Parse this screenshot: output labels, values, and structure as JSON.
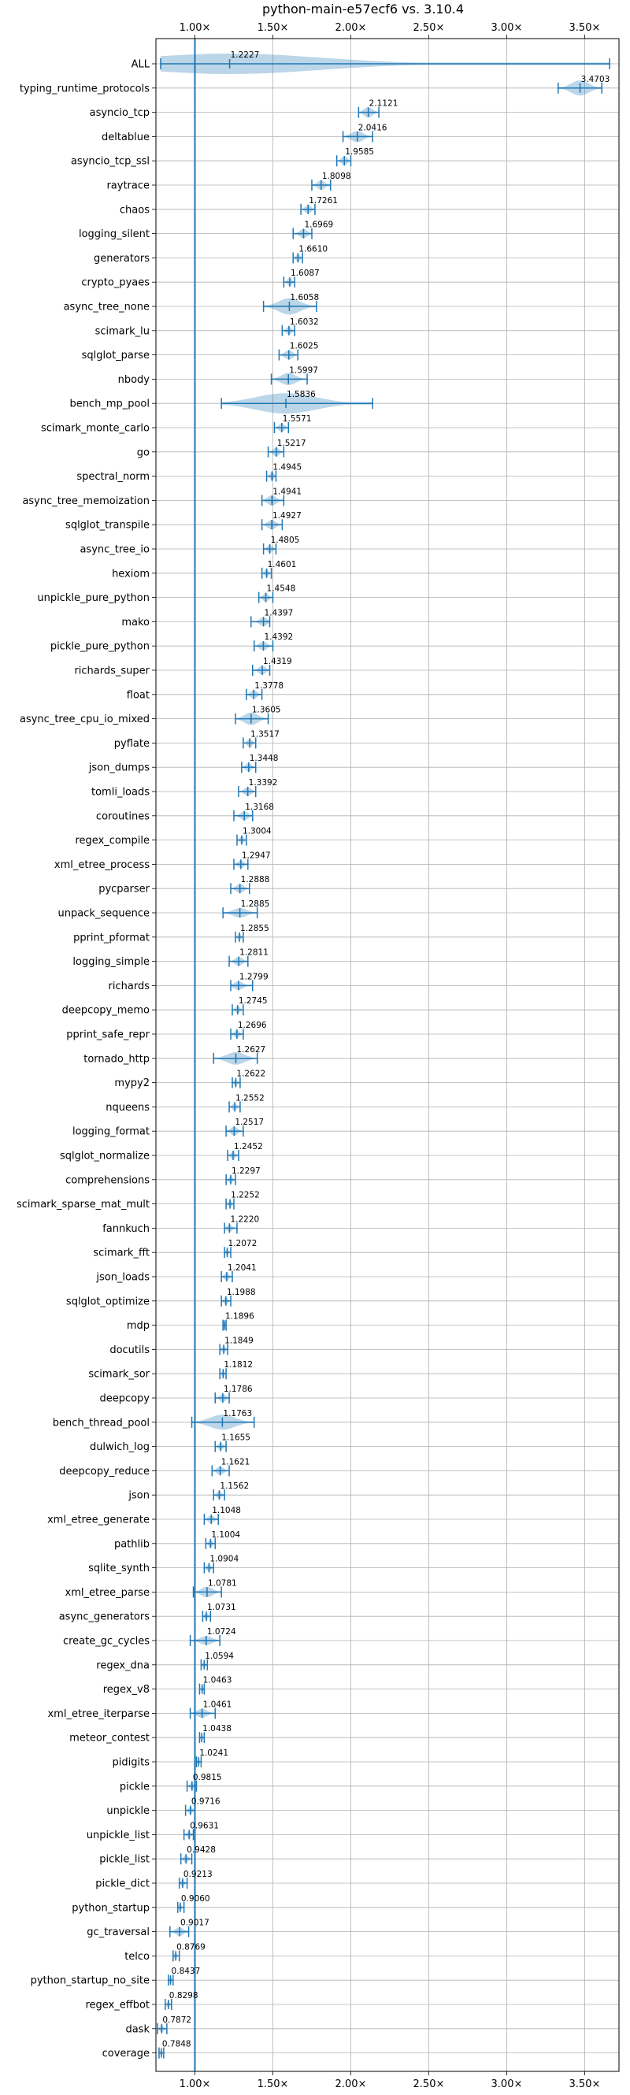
{
  "chart_data": {
    "type": "violin",
    "title": "python-main-e57ecf6 vs. 3.10.4",
    "x_ticks": [
      1.0,
      1.5,
      2.0,
      2.5,
      3.0,
      3.5
    ],
    "x_tick_labels": [
      "1.00×",
      "1.50×",
      "2.00×",
      "2.50×",
      "3.00×",
      "3.50×"
    ],
    "xlim": [
      0.75,
      3.72
    ],
    "reference_line": 1.0,
    "benchmarks": [
      {
        "name": "ALL",
        "value": 1.2227,
        "label": "1.2227",
        "min": 0.78,
        "max": 3.66,
        "spread": 0.55
      },
      {
        "name": "typing_runtime_protocols",
        "value": 3.4703,
        "label": "3.4703",
        "min": 3.33,
        "max": 3.61,
        "spread": 0.14
      },
      {
        "name": "asyncio_tcp",
        "value": 2.1121,
        "label": "2.1121",
        "min": 2.05,
        "max": 2.18,
        "spread": 0.07
      },
      {
        "name": "deltablue",
        "value": 2.0416,
        "label": "2.0416",
        "min": 1.95,
        "max": 2.14,
        "spread": 0.08
      },
      {
        "name": "asyncio_tcp_ssl",
        "value": 1.9585,
        "label": "1.9585",
        "min": 1.91,
        "max": 2.0,
        "spread": 0.05
      },
      {
        "name": "raytrace",
        "value": 1.8098,
        "label": "1.8098",
        "min": 1.75,
        "max": 1.87,
        "spread": 0.05
      },
      {
        "name": "chaos",
        "value": 1.7261,
        "label": "1.7261",
        "min": 1.68,
        "max": 1.77,
        "spread": 0.04
      },
      {
        "name": "logging_silent",
        "value": 1.6969,
        "label": "1.6969",
        "min": 1.63,
        "max": 1.75,
        "spread": 0.05
      },
      {
        "name": "generators",
        "value": 1.661,
        "label": "1.6610",
        "min": 1.63,
        "max": 1.69,
        "spread": 0.03
      },
      {
        "name": "crypto_pyaes",
        "value": 1.6087,
        "label": "1.6087",
        "min": 1.57,
        "max": 1.64,
        "spread": 0.03
      },
      {
        "name": "async_tree_none",
        "value": 1.6058,
        "label": "1.6058",
        "min": 1.44,
        "max": 1.78,
        "spread": 0.16
      },
      {
        "name": "scimark_lu",
        "value": 1.6032,
        "label": "1.6032",
        "min": 1.56,
        "max": 1.64,
        "spread": 0.03
      },
      {
        "name": "sqlglot_parse",
        "value": 1.6025,
        "label": "1.6025",
        "min": 1.54,
        "max": 1.66,
        "spread": 0.05
      },
      {
        "name": "nbody",
        "value": 1.5997,
        "label": "1.5997",
        "min": 1.49,
        "max": 1.72,
        "spread": 0.09
      },
      {
        "name": "bench_mp_pool",
        "value": 1.5836,
        "label": "1.5836",
        "min": 1.17,
        "max": 2.14,
        "spread": 0.38
      },
      {
        "name": "scimark_monte_carlo",
        "value": 1.5571,
        "label": "1.5571",
        "min": 1.51,
        "max": 1.6,
        "spread": 0.04
      },
      {
        "name": "go",
        "value": 1.5217,
        "label": "1.5217",
        "min": 1.47,
        "max": 1.57,
        "spread": 0.04
      },
      {
        "name": "spectral_norm",
        "value": 1.4945,
        "label": "1.4945",
        "min": 1.46,
        "max": 1.52,
        "spread": 0.03
      },
      {
        "name": "async_tree_memoization",
        "value": 1.4941,
        "label": "1.4941",
        "min": 1.43,
        "max": 1.57,
        "spread": 0.06
      },
      {
        "name": "sqlglot_transpile",
        "value": 1.4927,
        "label": "1.4927",
        "min": 1.43,
        "max": 1.56,
        "spread": 0.05
      },
      {
        "name": "async_tree_io",
        "value": 1.4805,
        "label": "1.4805",
        "min": 1.44,
        "max": 1.52,
        "spread": 0.03
      },
      {
        "name": "hexiom",
        "value": 1.4601,
        "label": "1.4601",
        "min": 1.43,
        "max": 1.49,
        "spread": 0.02
      },
      {
        "name": "unpickle_pure_python",
        "value": 1.4548,
        "label": "1.4548",
        "min": 1.41,
        "max": 1.5,
        "spread": 0.04
      },
      {
        "name": "mako",
        "value": 1.4397,
        "label": "1.4397",
        "min": 1.36,
        "max": 1.48,
        "spread": 0.04
      },
      {
        "name": "pickle_pure_python",
        "value": 1.4392,
        "label": "1.4392",
        "min": 1.38,
        "max": 1.5,
        "spread": 0.04
      },
      {
        "name": "richards_super",
        "value": 1.4319,
        "label": "1.4319",
        "min": 1.37,
        "max": 1.48,
        "spread": 0.04
      },
      {
        "name": "float",
        "value": 1.3778,
        "label": "1.3778",
        "min": 1.33,
        "max": 1.43,
        "spread": 0.04
      },
      {
        "name": "async_tree_cpu_io_mixed",
        "value": 1.3605,
        "label": "1.3605",
        "min": 1.26,
        "max": 1.47,
        "spread": 0.1
      },
      {
        "name": "pyflate",
        "value": 1.3517,
        "label": "1.3517",
        "min": 1.31,
        "max": 1.39,
        "spread": 0.03
      },
      {
        "name": "json_dumps",
        "value": 1.3448,
        "label": "1.3448",
        "min": 1.3,
        "max": 1.39,
        "spread": 0.04
      },
      {
        "name": "tomli_loads",
        "value": 1.3392,
        "label": "1.3392",
        "min": 1.28,
        "max": 1.39,
        "spread": 0.04
      },
      {
        "name": "coroutines",
        "value": 1.3168,
        "label": "1.3168",
        "min": 1.25,
        "max": 1.37,
        "spread": 0.04
      },
      {
        "name": "regex_compile",
        "value": 1.3004,
        "label": "1.3004",
        "min": 1.27,
        "max": 1.33,
        "spread": 0.02
      },
      {
        "name": "xml_etree_process",
        "value": 1.2947,
        "label": "1.2947",
        "min": 1.25,
        "max": 1.34,
        "spread": 0.03
      },
      {
        "name": "pycparser",
        "value": 1.2888,
        "label": "1.2888",
        "min": 1.23,
        "max": 1.35,
        "spread": 0.04
      },
      {
        "name": "unpack_sequence",
        "value": 1.2885,
        "label": "1.2885",
        "min": 1.18,
        "max": 1.4,
        "spread": 0.05
      },
      {
        "name": "pprint_pformat",
        "value": 1.2855,
        "label": "1.2855",
        "min": 1.26,
        "max": 1.31,
        "spread": 0.02
      },
      {
        "name": "logging_simple",
        "value": 1.2811,
        "label": "1.2811",
        "min": 1.22,
        "max": 1.34,
        "spread": 0.04
      },
      {
        "name": "richards",
        "value": 1.2799,
        "label": "1.2799",
        "min": 1.23,
        "max": 1.37,
        "spread": 0.04
      },
      {
        "name": "deepcopy_memo",
        "value": 1.2745,
        "label": "1.2745",
        "min": 1.24,
        "max": 1.31,
        "spread": 0.02
      },
      {
        "name": "pprint_safe_repr",
        "value": 1.2696,
        "label": "1.2696",
        "min": 1.23,
        "max": 1.31,
        "spread": 0.03
      },
      {
        "name": "tornado_http",
        "value": 1.2627,
        "label": "1.2627",
        "min": 1.12,
        "max": 1.4,
        "spread": 0.1
      },
      {
        "name": "mypy2",
        "value": 1.2622,
        "label": "1.2622",
        "min": 1.24,
        "max": 1.29,
        "spread": 0.02
      },
      {
        "name": "nqueens",
        "value": 1.2552,
        "label": "1.2552",
        "min": 1.22,
        "max": 1.29,
        "spread": 0.02
      },
      {
        "name": "logging_format",
        "value": 1.2517,
        "label": "1.2517",
        "min": 1.2,
        "max": 1.31,
        "spread": 0.04
      },
      {
        "name": "sqlglot_normalize",
        "value": 1.2452,
        "label": "1.2452",
        "min": 1.21,
        "max": 1.28,
        "spread": 0.02
      },
      {
        "name": "comprehensions",
        "value": 1.2297,
        "label": "1.2297",
        "min": 1.2,
        "max": 1.26,
        "spread": 0.02
      },
      {
        "name": "scimark_sparse_mat_mult",
        "value": 1.2252,
        "label": "1.2252",
        "min": 1.2,
        "max": 1.25,
        "spread": 0.02
      },
      {
        "name": "fannkuch",
        "value": 1.222,
        "label": "1.2220",
        "min": 1.19,
        "max": 1.27,
        "spread": 0.02
      },
      {
        "name": "scimark_fft",
        "value": 1.2072,
        "label": "1.2072",
        "min": 1.19,
        "max": 1.23,
        "spread": 0.01
      },
      {
        "name": "json_loads",
        "value": 1.2041,
        "label": "1.2041",
        "min": 1.17,
        "max": 1.24,
        "spread": 0.03
      },
      {
        "name": "sqlglot_optimize",
        "value": 1.1988,
        "label": "1.1988",
        "min": 1.17,
        "max": 1.23,
        "spread": 0.02
      },
      {
        "name": "mdp",
        "value": 1.1896,
        "label": "1.1896",
        "min": 1.18,
        "max": 1.2,
        "spread": 0.01
      },
      {
        "name": "docutils",
        "value": 1.1849,
        "label": "1.1849",
        "min": 1.16,
        "max": 1.21,
        "spread": 0.02
      },
      {
        "name": "scimark_sor",
        "value": 1.1812,
        "label": "1.1812",
        "min": 1.16,
        "max": 1.2,
        "spread": 0.01
      },
      {
        "name": "deepcopy",
        "value": 1.1786,
        "label": "1.1786",
        "min": 1.13,
        "max": 1.22,
        "spread": 0.03
      },
      {
        "name": "bench_thread_pool",
        "value": 1.1763,
        "label": "1.1763",
        "min": 0.98,
        "max": 1.38,
        "spread": 0.14
      },
      {
        "name": "dulwich_log",
        "value": 1.1655,
        "label": "1.1655",
        "min": 1.13,
        "max": 1.2,
        "spread": 0.02
      },
      {
        "name": "deepcopy_reduce",
        "value": 1.1621,
        "label": "1.1621",
        "min": 1.11,
        "max": 1.22,
        "spread": 0.03
      },
      {
        "name": "json",
        "value": 1.1562,
        "label": "1.1562",
        "min": 1.12,
        "max": 1.19,
        "spread": 0.02
      },
      {
        "name": "xml_etree_generate",
        "value": 1.1048,
        "label": "1.1048",
        "min": 1.06,
        "max": 1.15,
        "spread": 0.03
      },
      {
        "name": "pathlib",
        "value": 1.1004,
        "label": "1.1004",
        "min": 1.07,
        "max": 1.13,
        "spread": 0.02
      },
      {
        "name": "sqlite_synth",
        "value": 1.0904,
        "label": "1.0904",
        "min": 1.06,
        "max": 1.12,
        "spread": 0.02
      },
      {
        "name": "xml_etree_parse",
        "value": 1.0781,
        "label": "1.0781",
        "min": 0.99,
        "max": 1.17,
        "spread": 0.07
      },
      {
        "name": "async_generators",
        "value": 1.0731,
        "label": "1.0731",
        "min": 1.05,
        "max": 1.1,
        "spread": 0.02
      },
      {
        "name": "create_gc_cycles",
        "value": 1.0724,
        "label": "1.0724",
        "min": 0.97,
        "max": 1.16,
        "spread": 0.04
      },
      {
        "name": "regex_dna",
        "value": 1.0594,
        "label": "1.0594",
        "min": 1.04,
        "max": 1.08,
        "spread": 0.01
      },
      {
        "name": "regex_v8",
        "value": 1.0463,
        "label": "1.0463",
        "min": 1.03,
        "max": 1.06,
        "spread": 0.01
      },
      {
        "name": "xml_etree_iterparse",
        "value": 1.0461,
        "label": "1.0461",
        "min": 0.97,
        "max": 1.13,
        "spread": 0.04
      },
      {
        "name": "meteor_contest",
        "value": 1.0438,
        "label": "1.0438",
        "min": 1.03,
        "max": 1.06,
        "spread": 0.01
      },
      {
        "name": "pidigits",
        "value": 1.0241,
        "label": "1.0241",
        "min": 1.01,
        "max": 1.04,
        "spread": 0.01
      },
      {
        "name": "pickle",
        "value": 0.9815,
        "label": "0.9815",
        "min": 0.95,
        "max": 1.01,
        "spread": 0.02
      },
      {
        "name": "unpickle",
        "value": 0.9716,
        "label": "0.9716",
        "min": 0.94,
        "max": 1.0,
        "spread": 0.02
      },
      {
        "name": "unpickle_list",
        "value": 0.9631,
        "label": "0.9631",
        "min": 0.93,
        "max": 0.99,
        "spread": 0.02
      },
      {
        "name": "pickle_list",
        "value": 0.9428,
        "label": "0.9428",
        "min": 0.91,
        "max": 0.98,
        "spread": 0.02
      },
      {
        "name": "pickle_dict",
        "value": 0.9213,
        "label": "0.9213",
        "min": 0.9,
        "max": 0.95,
        "spread": 0.02
      },
      {
        "name": "python_startup",
        "value": 0.906,
        "label": "0.9060",
        "min": 0.89,
        "max": 0.93,
        "spread": 0.02
      },
      {
        "name": "gc_traversal",
        "value": 0.9017,
        "label": "0.9017",
        "min": 0.84,
        "max": 0.96,
        "spread": 0.04
      },
      {
        "name": "telco",
        "value": 0.8769,
        "label": "0.8769",
        "min": 0.86,
        "max": 0.9,
        "spread": 0.01
      },
      {
        "name": "python_startup_no_site",
        "value": 0.8437,
        "label": "0.8437",
        "min": 0.83,
        "max": 0.86,
        "spread": 0.01
      },
      {
        "name": "regex_effbot",
        "value": 0.8298,
        "label": "0.8298",
        "min": 0.81,
        "max": 0.85,
        "spread": 0.01
      },
      {
        "name": "dask",
        "value": 0.7872,
        "label": "0.7872",
        "min": 0.76,
        "max": 0.82,
        "spread": 0.02
      },
      {
        "name": "coverage",
        "value": 0.7848,
        "label": "0.7848",
        "min": 0.77,
        "max": 0.8,
        "spread": 0.01
      }
    ]
  }
}
